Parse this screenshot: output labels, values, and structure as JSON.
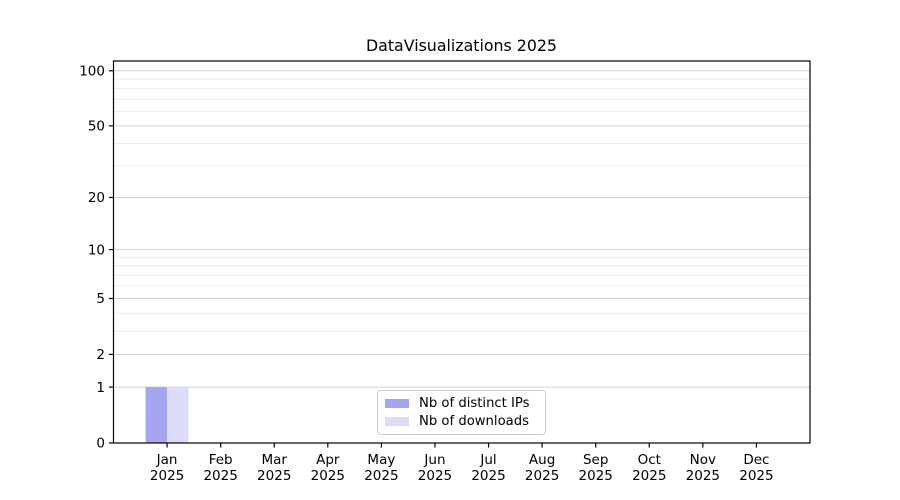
{
  "figure": {
    "background": "#ffffff"
  },
  "chart_data": {
    "type": "bar",
    "title": "DataVisualizations 2025",
    "categories": [
      "Jan",
      "Feb",
      "Mar",
      "Apr",
      "May",
      "Jun",
      "Jul",
      "Aug",
      "Sep",
      "Oct",
      "Nov",
      "Dec"
    ],
    "x_tick_second_line": "2025",
    "series": [
      {
        "name": "Nb of distinct IPs",
        "color": "#a5a5f0",
        "values": [
          1,
          0,
          0,
          0,
          0,
          0,
          0,
          0,
          0,
          0,
          0,
          0
        ]
      },
      {
        "name": "Nb of downloads",
        "color": "#dcdcf8",
        "values": [
          1,
          0,
          0,
          0,
          0,
          0,
          0,
          0,
          0,
          0,
          0,
          0
        ]
      }
    ],
    "xlabel": "",
    "ylabel": "",
    "yscale": "log1p",
    "ylim": [
      0,
      113
    ],
    "y_major_ticks": [
      0,
      1,
      2,
      5,
      10,
      20,
      50,
      100
    ],
    "y_minor_ticks": [
      3,
      4,
      6,
      7,
      8,
      9,
      30,
      40,
      60,
      70,
      80,
      90
    ],
    "grid": true,
    "legend_position": "lower center",
    "colors": {
      "major_grid": "#d0d0d0",
      "minor_grid": "#ececec",
      "spine": "#000000",
      "text": "#000000"
    }
  }
}
